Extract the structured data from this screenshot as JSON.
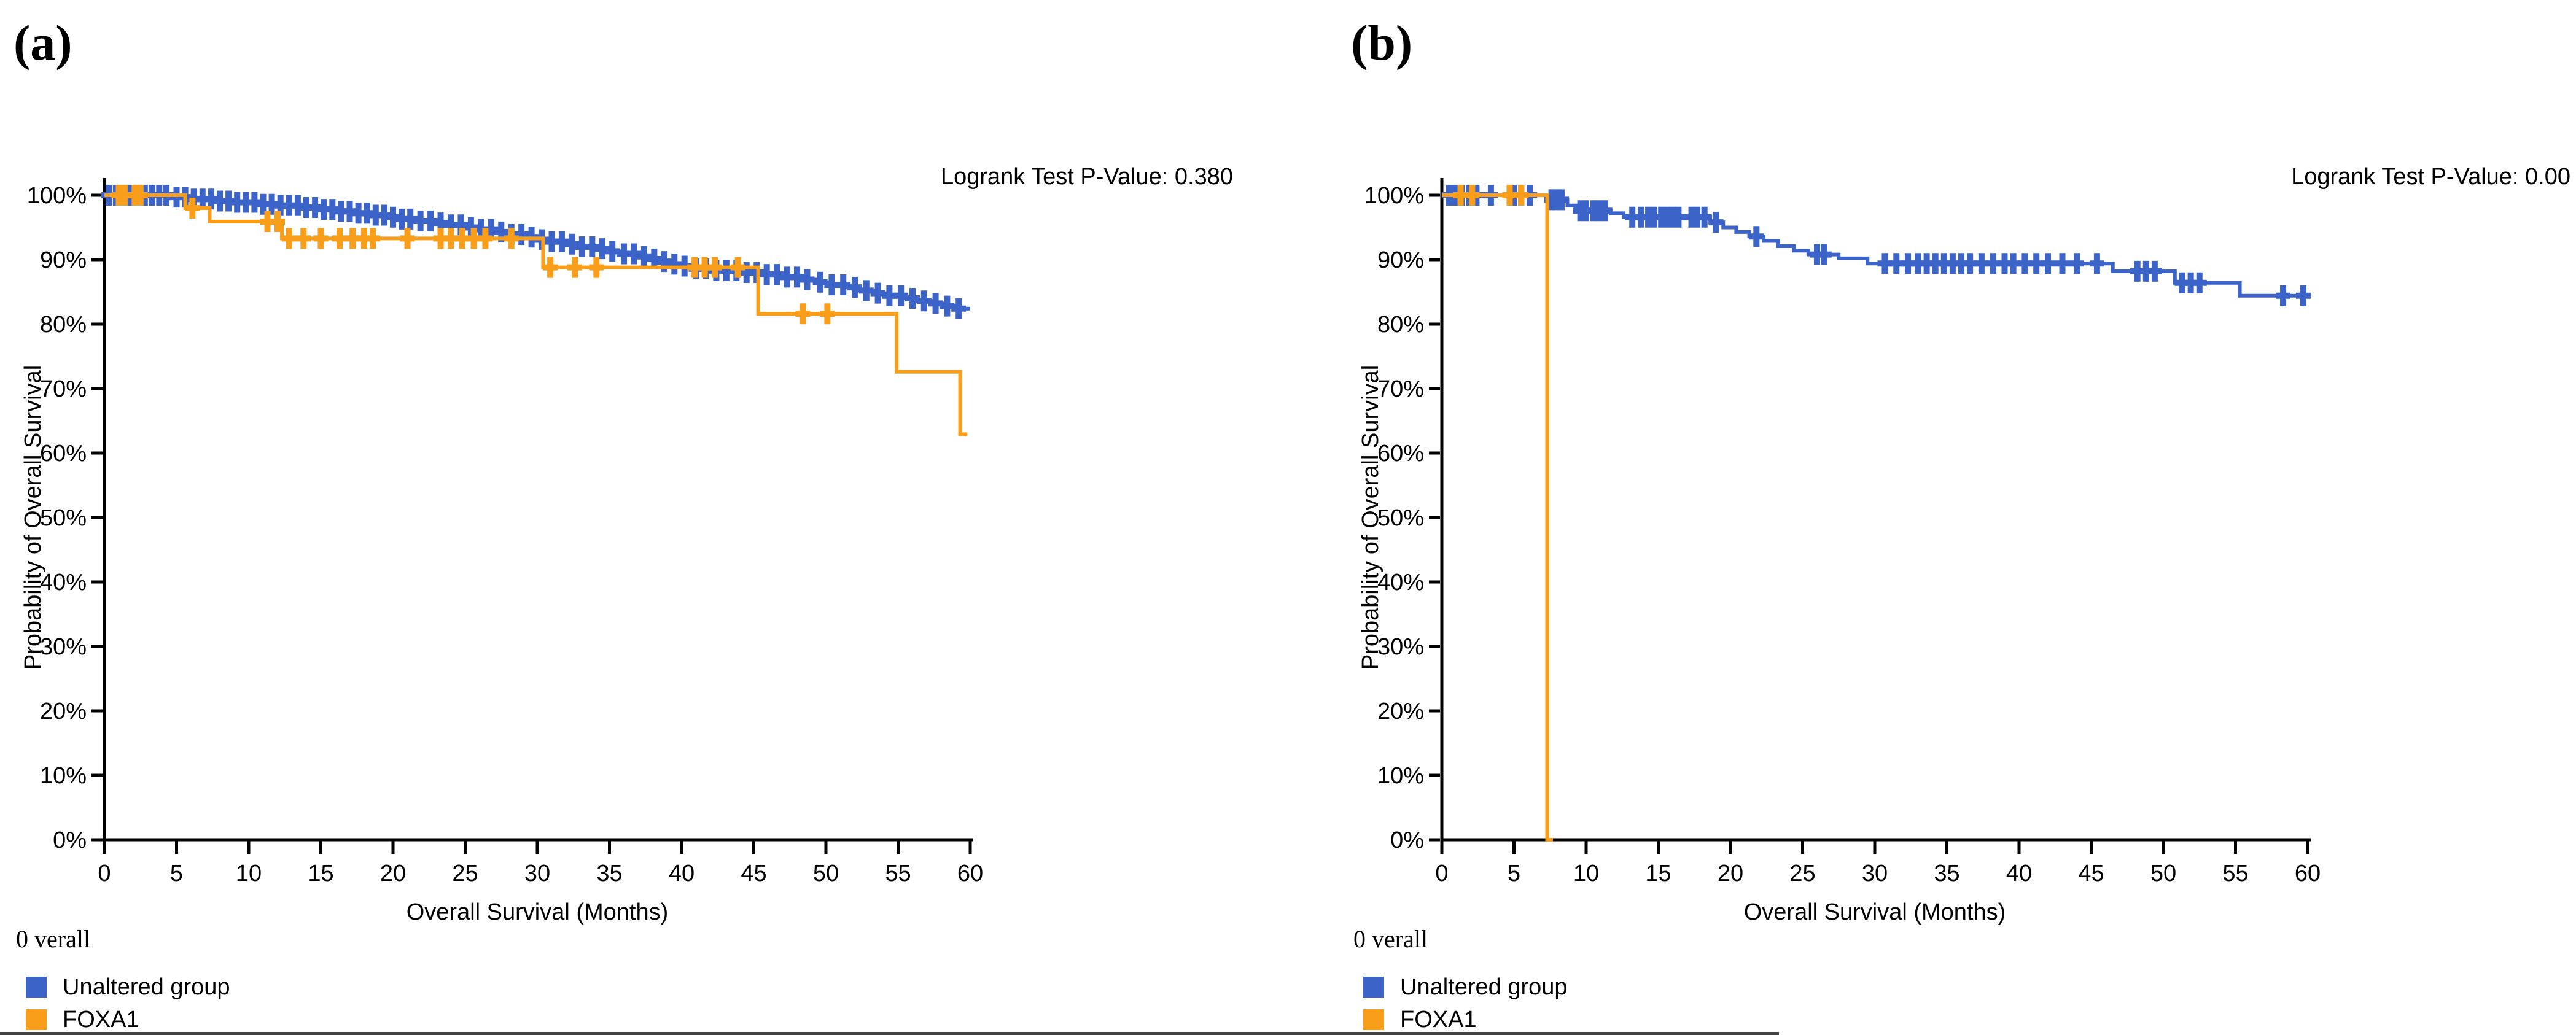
{
  "colors": {
    "unaltered_blue": "#3C64C8",
    "foxa1_orange": "#F89E1B",
    "axis_black": "#000000",
    "bottom_edge_gray": "#3f3f3f"
  },
  "panels": [
    {
      "label": "(a)",
      "pvalue_text": "Logrank Test P-Value: 0.380",
      "overall_text": "0 verall",
      "legend": [
        {
          "label": "Unaltered group",
          "color": "#3C64C8"
        },
        {
          "label": "FOXA1",
          "color": "#F89E1B"
        }
      ],
      "chart_data": {
        "type": "line",
        "subtype": "kaplan-meier-step",
        "title": "",
        "xlabel": "Overall Survival (Months)",
        "ylabel": "Probability of Overall Survival",
        "xlim": [
          0,
          60
        ],
        "ylim": [
          0,
          100
        ],
        "grid": false,
        "legend_position": "bottom-left",
        "xtick_values": [
          0,
          5,
          10,
          15,
          20,
          25,
          30,
          35,
          40,
          45,
          50,
          55,
          60
        ],
        "xtick_labels": [
          "0",
          "5",
          "10",
          "15",
          "20",
          "25",
          "30",
          "35",
          "40",
          "45",
          "50",
          "55",
          "60"
        ],
        "ytick_values": [
          0,
          10,
          20,
          30,
          40,
          50,
          60,
          70,
          80,
          90,
          100
        ],
        "ytick_labels": [
          "0%",
          "10%",
          "20%",
          "30%",
          "40%",
          "50%",
          "60%",
          "70%",
          "80%",
          "90%",
          "100%"
        ],
        "series": [
          {
            "name": "Unaltered group",
            "color": "#3C64C8",
            "end_x": 60,
            "steps": [
              [
                0,
                100
              ],
              [
                4.5,
                99.7
              ],
              [
                6.2,
                99.4
              ],
              [
                7.6,
                99.1
              ],
              [
                9,
                98.9
              ],
              [
                10.5,
                98.6
              ],
              [
                12,
                98.4
              ],
              [
                13.5,
                98.1
              ],
              [
                15,
                97.8
              ],
              [
                16.2,
                97.5
              ],
              [
                17.3,
                97.2
              ],
              [
                18.4,
                96.9
              ],
              [
                19.5,
                96.6
              ],
              [
                20.6,
                96.3
              ],
              [
                21.7,
                96.0
              ],
              [
                22.8,
                95.7
              ],
              [
                23.9,
                95.4
              ],
              [
                25,
                95.0
              ],
              [
                26,
                94.7
              ],
              [
                27,
                94.3
              ],
              [
                28,
                93.9
              ],
              [
                29,
                93.5
              ],
              [
                30,
                93.1
              ],
              [
                31,
                92.8
              ],
              [
                32,
                92.4
              ],
              [
                33,
                92.0
              ],
              [
                34,
                91.7
              ],
              [
                35,
                91.3
              ],
              [
                36,
                90.9
              ],
              [
                36.8,
                90.5
              ],
              [
                37.6,
                90.1
              ],
              [
                38.4,
                89.7
              ],
              [
                39.2,
                89.3
              ],
              [
                40,
                89.0
              ],
              [
                41,
                88.6
              ],
              [
                42,
                88.3
              ],
              [
                44,
                88.0
              ],
              [
                45.5,
                87.7
              ],
              [
                47,
                87.3
              ],
              [
                48.2,
                86.9
              ],
              [
                49.3,
                86.5
              ],
              [
                50.3,
                86.1
              ],
              [
                51.3,
                85.7
              ],
              [
                52.3,
                85.2
              ],
              [
                53.3,
                84.8
              ],
              [
                54.3,
                84.4
              ],
              [
                55.3,
                84.0
              ],
              [
                56.3,
                83.6
              ],
              [
                57.3,
                83.2
              ],
              [
                58.3,
                82.8
              ],
              [
                59.2,
                82.4
              ]
            ],
            "censor_months": [
              0.3,
              0.8,
              1.3,
              1.8,
              2.3,
              2.8,
              3.3,
              3.8,
              4.3,
              5,
              5.6,
              6.2,
              6.8,
              7.4,
              8,
              8.6,
              9.2,
              9.8,
              10.4,
              11,
              11.6,
              12.2,
              12.8,
              13.4,
              14,
              14.6,
              15.2,
              15.8,
              16.4,
              17,
              17.6,
              18.2,
              18.8,
              19.4,
              20,
              20.6,
              21.2,
              21.9,
              22.6,
              23.3,
              24,
              24.7,
              25.4,
              26.1,
              26.8,
              27.5,
              28.2,
              28.9,
              29.6,
              30.3,
              31,
              31.7,
              32.4,
              33.1,
              33.8,
              34.5,
              35.2,
              36,
              36.7,
              37.4,
              38.1,
              38.8,
              39.5,
              40.2,
              41,
              41.7,
              42.4,
              43.1,
              43.8,
              44.5,
              45.2,
              45.9,
              46.6,
              47.3,
              48,
              48.7,
              49.6,
              50.4,
              51.2,
              52,
              52.8,
              53.6,
              54.4,
              55.2,
              56,
              56.8,
              57.6,
              58.4,
              59.2
            ]
          },
          {
            "name": "FOXA1",
            "color": "#F89E1B",
            "end_x": 59.8,
            "steps": [
              [
                0,
                100
              ],
              [
                5.6,
                98.0
              ],
              [
                7.3,
                95.9
              ],
              [
                12.3,
                93.3
              ],
              [
                30.4,
                88.8
              ],
              [
                45.3,
                81.6
              ],
              [
                54.9,
                72.6
              ],
              [
                59.3,
                62.9
              ]
            ],
            "censor_months": [
              1.0,
              1.4,
              2.1,
              2.5,
              6.1,
              11.3,
              12.0,
              12.8,
              13.8,
              15.0,
              16.3,
              17.2,
              18.0,
              18.6,
              21.0,
              23.3,
              24.0,
              24.8,
              25.6,
              26.4,
              28.2,
              30.9,
              32.6,
              34.1,
              40.9,
              41.6,
              42.3,
              43.9,
              48.4,
              50.1
            ]
          }
        ]
      }
    },
    {
      "label": "(b)",
      "pvalue_text": "Logrank Test P-Value: 0.00",
      "overall_text": "0 verall",
      "legend": [
        {
          "label": "Unaltered group",
          "color": "#3C64C8"
        },
        {
          "label": "FOXA1",
          "color": "#F89E1B"
        }
      ],
      "chart_data": {
        "type": "line",
        "subtype": "kaplan-meier-step",
        "title": "",
        "xlabel": "Overall Survival (Months)",
        "ylabel": "Probability of Overall Survival",
        "xlim": [
          0,
          60
        ],
        "ylim": [
          0,
          100
        ],
        "grid": false,
        "legend_position": "bottom-left",
        "xtick_values": [
          0,
          5,
          10,
          15,
          20,
          25,
          30,
          35,
          40,
          45,
          50,
          55,
          60
        ],
        "xtick_labels": [
          "0",
          "5",
          "10",
          "15",
          "20",
          "25",
          "30",
          "35",
          "40",
          "45",
          "50",
          "55",
          "60"
        ],
        "ytick_values": [
          0,
          10,
          20,
          30,
          40,
          50,
          60,
          70,
          80,
          90,
          100
        ],
        "ytick_labels": [
          "0%",
          "10%",
          "20%",
          "30%",
          "40%",
          "50%",
          "60%",
          "70%",
          "80%",
          "90%",
          "100%"
        ],
        "series": [
          {
            "name": "Unaltered group",
            "color": "#3C64C8",
            "end_x": 60,
            "steps": [
              [
                0,
                100
              ],
              [
                7.4,
                99.3
              ],
              [
                8.7,
                98.4
              ],
              [
                9.3,
                97.6
              ],
              [
                11.7,
                97.2
              ],
              [
                12.6,
                96.6
              ],
              [
                18.6,
                95.8
              ],
              [
                19.5,
                95.0
              ],
              [
                20.4,
                94.3
              ],
              [
                21.3,
                93.6
              ],
              [
                22.3,
                92.9
              ],
              [
                23.3,
                92.1
              ],
              [
                24.4,
                91.4
              ],
              [
                25.4,
                90.8
              ],
              [
                27.5,
                90.2
              ],
              [
                29.5,
                89.4
              ],
              [
                46.5,
                88.2
              ],
              [
                50.8,
                86.4
              ],
              [
                55.3,
                84.4
              ]
            ],
            "censor_months": [
              0.5,
              0.9,
              1.4,
              1.9,
              2.4,
              3.4,
              5.0,
              5.5,
              6.1,
              7.6,
              7.9,
              8.3,
              9.6,
              10.0,
              10.5,
              10.9,
              11.3,
              13.2,
              13.8,
              14.3,
              14.7,
              15.2,
              15.6,
              16.0,
              16.4,
              17.3,
              17.7,
              18.2,
              19.0,
              21.8,
              26.0,
              26.5,
              30.7,
              31.5,
              32.3,
              33.0,
              33.6,
              34.2,
              34.8,
              35.4,
              36.0,
              36.6,
              37.4,
              38.2,
              39.0,
              39.6,
              40.4,
              41.2,
              42.0,
              43.0,
              44.0,
              45.4,
              48.2,
              48.8,
              49.4,
              51.3,
              51.9,
              52.5,
              58.3,
              59.7
            ]
          },
          {
            "name": "FOXA1",
            "color": "#F89E1B",
            "end_x": 7.7,
            "steps": [
              [
                0,
                100
              ],
              [
                7.3,
                0
              ]
            ],
            "censor_months": [
              1.3,
              2.1,
              4.7,
              5.5
            ]
          }
        ]
      }
    }
  ]
}
